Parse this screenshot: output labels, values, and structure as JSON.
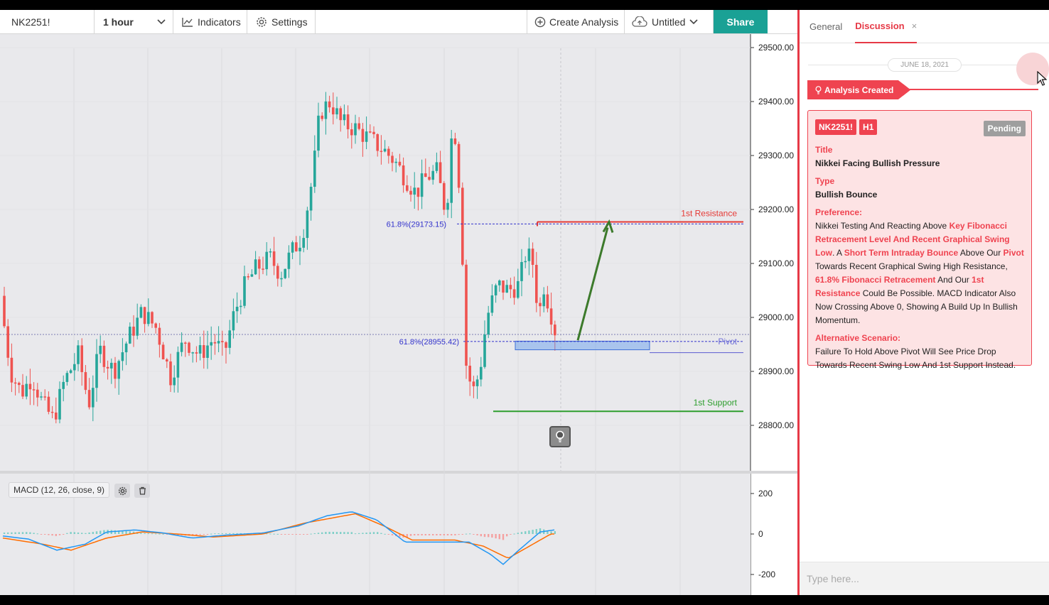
{
  "toolbar": {
    "symbol": "NK2251!",
    "interval": "1 hour",
    "indicators_label": "Indicators",
    "settings_label": "Settings",
    "create_label": "Create Analysis",
    "untitled_label": "Untitled",
    "share_label": "Share"
  },
  "chart": {
    "price_ticks": [
      "29500.00",
      "29400.00",
      "29300.00",
      "29200.00",
      "29100.00",
      "29000.00",
      "28900.00",
      "28800.00"
    ],
    "macd_ticks": [
      "200",
      "0",
      "-200"
    ],
    "macd_label": "MACD (12, 26, close, 9)",
    "annotations": {
      "resistance_label": "1st Resistance",
      "support_label": "1st Support",
      "pivot_label": "Pivot",
      "fib_high_label": "61.8%(29173.15)",
      "fib_low_label": "61.8%(28955.42)",
      "resistance_price": 29177,
      "support_price": 28826,
      "fib_high_price": 29173.15,
      "fib_low_price": 28955.42,
      "pivot_price": 28955,
      "zone_low": 28940,
      "zone_high": 28956
    },
    "colors": {
      "up": "#26a69a",
      "down": "#ef5350",
      "resistance": "#e53935",
      "support": "#2e9e2e",
      "fib": "#3333cc",
      "arrow": "#3c7a2b",
      "macd": "#2196f3",
      "signal": "#ff6d00"
    }
  },
  "panel": {
    "tab_general": "General",
    "tab_discussion": "Discussion",
    "tab_close": "×",
    "date": "JUNE 18, 2021",
    "created_label": "Analysis Created",
    "card": {
      "symbol": "NK2251!",
      "timeframe": "H1",
      "status": "Pending",
      "title_label": "Title",
      "title": "Nikkei Facing Bullish Pressure",
      "type_label": "Type",
      "type": "Bullish Bounce",
      "preference_label": "Preference:",
      "pref_1": "Nikkei Testing And Reacting Above ",
      "pref_2": "Key Fibonacci Retracement Level And Recent Graphical Swing Low",
      "pref_3": ". A ",
      "pref_4": "Short Term Intraday Bounce",
      "pref_5": " Above Our ",
      "pref_6": "Pivot",
      "pref_7": " Towards Recent Graphical Swing High Resistance, ",
      "pref_8": "61.8% Fibonacci Retracement",
      "pref_9": " And Our ",
      "pref_10": "1st Resistance",
      "pref_11": " Could Be Possible. MACD Indicator Also Now Crossing Above 0, Showing A Build Up In Bullish Momentum.",
      "alt_label": "Alternative Scenario:",
      "alt_text": "Failure To Hold Above Pivot Will See Price Drop Towards Recent Swing Low And 1st Support Instead."
    },
    "input_placeholder": "Type here..."
  }
}
